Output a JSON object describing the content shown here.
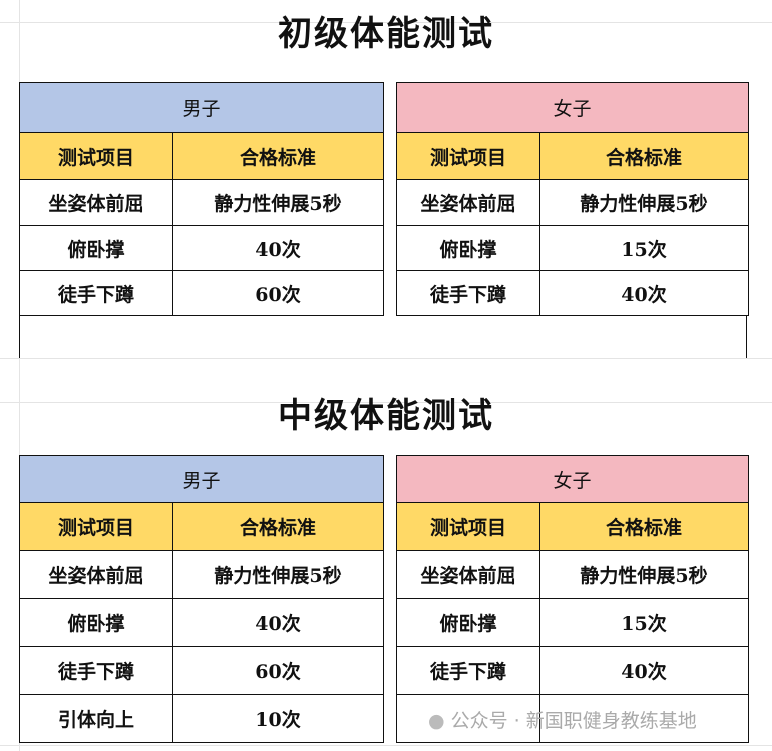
{
  "sections": [
    {
      "title": "初级体能测试",
      "men": {
        "label": "男子",
        "headers": [
          "测试项目",
          "合格标准"
        ],
        "rows": [
          [
            "坐姿体前屈",
            "静力性伸展5秒"
          ],
          [
            "俯卧撑",
            "40次"
          ],
          [
            "徒手下蹲",
            "60次"
          ]
        ]
      },
      "women": {
        "label": "女子",
        "headers": [
          "测试项目",
          "合格标准"
        ],
        "rows": [
          [
            "坐姿体前屈",
            "静力性伸展5秒"
          ],
          [
            "俯卧撑",
            "15次"
          ],
          [
            "徒手下蹲",
            "40次"
          ]
        ]
      }
    },
    {
      "title": "中级体能测试",
      "men": {
        "label": "男子",
        "headers": [
          "测试项目",
          "合格标准"
        ],
        "rows": [
          [
            "坐姿体前屈",
            "静力性伸展5秒"
          ],
          [
            "俯卧撑",
            "40次"
          ],
          [
            "徒手下蹲",
            "60次"
          ],
          [
            "引体向上",
            "10次"
          ]
        ]
      },
      "women": {
        "label": "女子",
        "headers": [
          "测试项目",
          "合格标准"
        ],
        "rows": [
          [
            "坐姿体前屈",
            "静力性伸展5秒"
          ],
          [
            "俯卧撑",
            "15次"
          ],
          [
            "徒手下蹲",
            "40次"
          ],
          [
            "",
            ""
          ]
        ]
      }
    }
  ],
  "watermark": "公众号 · 新国职健身教练基地",
  "colors": {
    "men_header": "#b4c6e7",
    "women_header": "#f4b8c0",
    "column_header": "#ffd966"
  }
}
